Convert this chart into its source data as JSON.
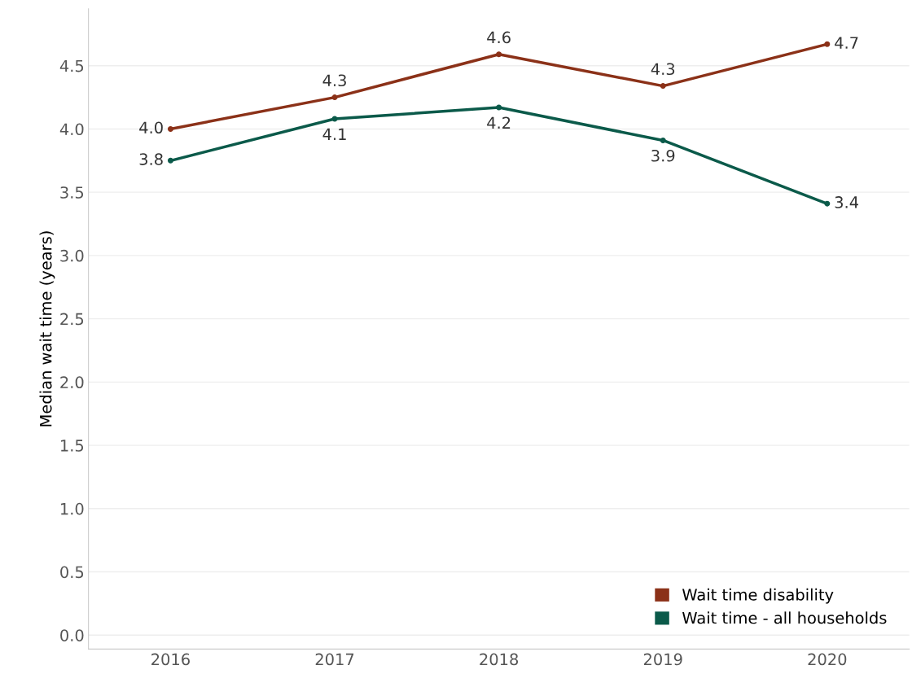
{
  "chart_data": {
    "type": "line",
    "ylabel": "Median wait time (years)",
    "categories": [
      "2016",
      "2017",
      "2018",
      "2019",
      "2020"
    ],
    "series": [
      {
        "name": "Wait time disability",
        "color": "#8b3118",
        "values": [
          4.0,
          4.25,
          4.59,
          4.34,
          4.67
        ],
        "value_labels": [
          "4.0",
          "4.3",
          "4.6",
          "4.3",
          "4.7"
        ]
      },
      {
        "name": "Wait time - all households",
        "color": "#0b5a4a",
        "values": [
          3.75,
          4.08,
          4.17,
          3.91,
          3.41
        ],
        "value_labels": [
          "3.8",
          "4.1",
          "4.2",
          "3.9",
          "3.4"
        ]
      }
    ],
    "ylim": [
      -0.11,
      4.95
    ],
    "yticks": [
      {
        "value": 0,
        "label": "0.0"
      },
      {
        "value": 0.5,
        "label": "0.5"
      },
      {
        "value": 1,
        "label": "1.0"
      },
      {
        "value": 1.5,
        "label": "1.5"
      },
      {
        "value": 2,
        "label": "2.0"
      },
      {
        "value": 2.5,
        "label": "2.5"
      },
      {
        "value": 3,
        "label": "3.0"
      },
      {
        "value": 3.5,
        "label": "3.5"
      },
      {
        "value": 4,
        "label": "4.0"
      },
      {
        "value": 4.5,
        "label": "4.5"
      }
    ],
    "grid": "y",
    "legend": "bottom right",
    "marker": "circle",
    "line_style": "solid"
  }
}
